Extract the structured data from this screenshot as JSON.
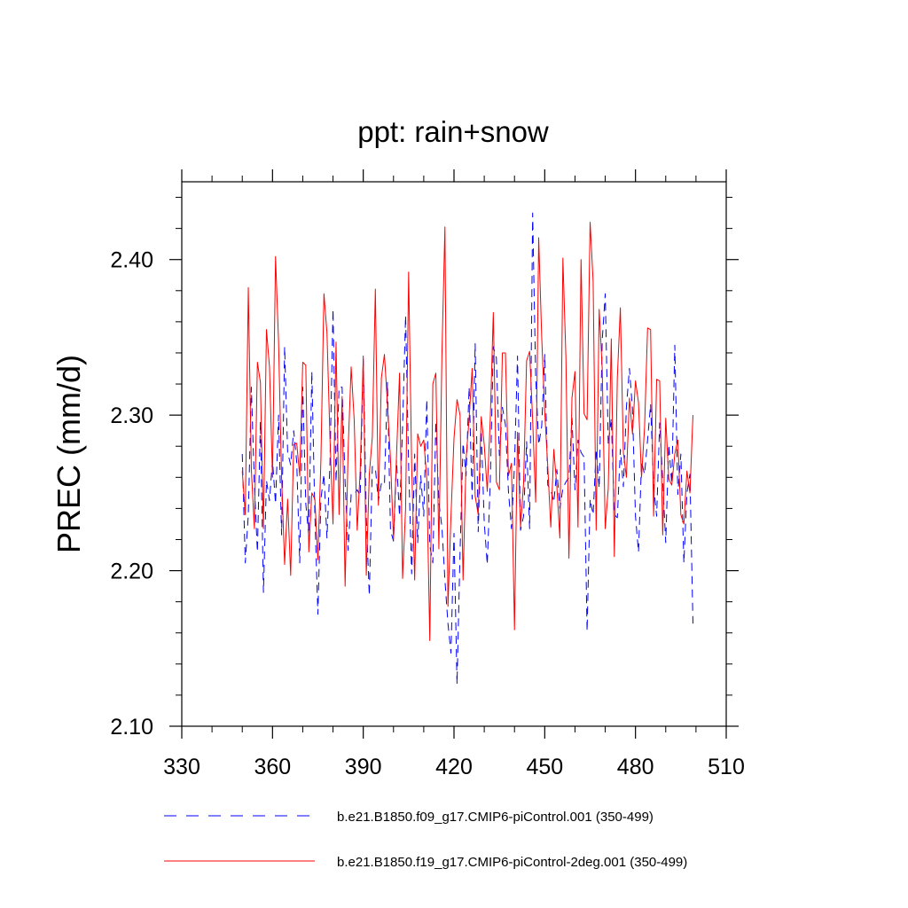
{
  "chart_data": {
    "type": "line",
    "title": "ppt: rain+snow",
    "xlabel": "",
    "ylabel": "PREC  (mm/d)",
    "xlim": [
      330,
      510
    ],
    "ylim": [
      2.1,
      2.45
    ],
    "xticks": [
      330,
      360,
      390,
      420,
      450,
      480,
      510
    ],
    "xtick_labels": [
      "330",
      "360",
      "390",
      "420",
      "450",
      "480",
      "510"
    ],
    "yticks": [
      2.1,
      2.2,
      2.3,
      2.4
    ],
    "ytick_labels": [
      "2.10",
      "2.20",
      "2.30",
      "2.40"
    ],
    "legend_position": "bottom",
    "series": [
      {
        "name": "b.e21.B1850.f09_g17.CMIP6-piControl.001 (350-499)",
        "color": "#0000ff",
        "style": "dashed",
        "x_start": 350,
        "values": [
          2.275,
          2.205,
          2.236,
          2.318,
          2.255,
          2.212,
          2.296,
          2.186,
          2.258,
          2.245,
          2.271,
          2.243,
          2.3,
          2.223,
          2.344,
          2.276,
          2.268,
          2.29,
          2.27,
          2.205,
          2.318,
          2.243,
          2.222,
          2.328,
          2.236,
          2.172,
          2.246,
          2.262,
          2.221,
          2.269,
          2.368,
          2.257,
          2.318,
          2.318,
          2.257,
          2.213,
          2.249,
          2.249,
          2.252,
          2.248,
          2.336,
          2.234,
          2.184,
          2.267,
          2.266,
          2.245,
          2.256,
          2.255,
          2.321,
          2.226,
          2.219,
          2.271,
          2.235,
          2.293,
          2.364,
          2.268,
          2.198,
          2.275,
          2.218,
          2.261,
          2.235,
          2.31,
          2.216,
          2.205,
          2.296,
          2.244,
          2.228,
          2.194,
          2.166,
          2.147,
          2.224,
          2.127,
          2.212,
          2.282,
          2.261,
          2.318,
          2.246,
          2.346,
          2.225,
          2.29,
          2.231,
          2.204,
          2.258,
          2.344,
          2.337,
          2.274,
          2.305,
          2.294,
          2.251,
          2.227,
          2.268,
          2.338,
          2.226,
          2.235,
          2.283,
          2.227,
          2.43,
          2.325,
          2.281,
          2.293,
          2.339,
          2.255,
          2.252,
          2.244,
          2.265,
          2.24,
          2.253,
          2.257,
          2.26,
          2.298,
          2.252,
          2.284,
          2.276,
          2.273,
          2.161,
          2.246,
          2.236,
          2.278,
          2.253,
          2.348,
          2.378,
          2.281,
          2.298,
          2.236,
          2.234,
          2.278,
          2.254,
          2.305,
          2.33,
          2.304,
          2.235,
          2.212,
          2.27,
          2.262,
          2.284,
          2.307,
          2.254,
          2.235,
          2.295,
          2.258,
          2.218,
          2.281,
          2.256,
          2.345,
          2.249,
          2.275,
          2.205,
          2.25,
          2.262,
          2.166
        ]
      },
      {
        "name": "b.e21.B1850.f19_g17.CMIP6-piControl-2deg.001 (350-499)",
        "color": "#ff0000",
        "style": "solid",
        "x_start": 350,
        "values": [
          2.264,
          2.236,
          2.382,
          2.265,
          2.227,
          2.334,
          2.321,
          2.227,
          2.355,
          2.331,
          2.26,
          2.402,
          2.347,
          2.26,
          2.204,
          2.246,
          2.197,
          2.281,
          2.282,
          2.261,
          2.334,
          2.332,
          2.212,
          2.25,
          2.246,
          2.207,
          2.271,
          2.378,
          2.353,
          2.285,
          2.23,
          2.347,
          2.236,
          2.312,
          2.19,
          2.278,
          2.331,
          2.297,
          2.226,
          2.265,
          2.338,
          2.197,
          2.262,
          2.286,
          2.381,
          2.242,
          2.324,
          2.339,
          2.307,
          2.272,
          2.22,
          2.274,
          2.327,
          2.195,
          2.24,
          2.392,
          2.268,
          2.194,
          2.288,
          2.28,
          2.284,
          2.259,
          2.155,
          2.32,
          2.327,
          2.214,
          2.338,
          2.421,
          2.177,
          2.235,
          2.285,
          2.31,
          2.3,
          2.194,
          2.272,
          2.298,
          2.33,
          2.248,
          2.236,
          2.299,
          2.281,
          2.251,
          2.298,
          2.366,
          2.257,
          2.252,
          2.34,
          2.34,
          2.261,
          2.269,
          2.162,
          2.289,
          2.228,
          2.256,
          2.335,
          2.341,
          2.297,
          2.244,
          2.414,
          2.35,
          2.302,
          2.267,
          2.228,
          2.278,
          2.254,
          2.221,
          2.401,
          2.337,
          2.208,
          2.311,
          2.328,
          2.228,
          2.4,
          2.301,
          2.297,
          2.424,
          2.386,
          2.226,
          2.368,
          2.33,
          2.227,
          2.253,
          2.349,
          2.209,
          2.324,
          2.369,
          2.276,
          2.26,
          2.311,
          2.288,
          2.322,
          2.308,
          2.26,
          2.292,
          2.356,
          2.355,
          2.235,
          2.323,
          2.322,
          2.223,
          2.298,
          2.259,
          2.255,
          2.275,
          2.284,
          2.236,
          2.23,
          2.264,
          2.25,
          2.3
        ]
      }
    ]
  }
}
